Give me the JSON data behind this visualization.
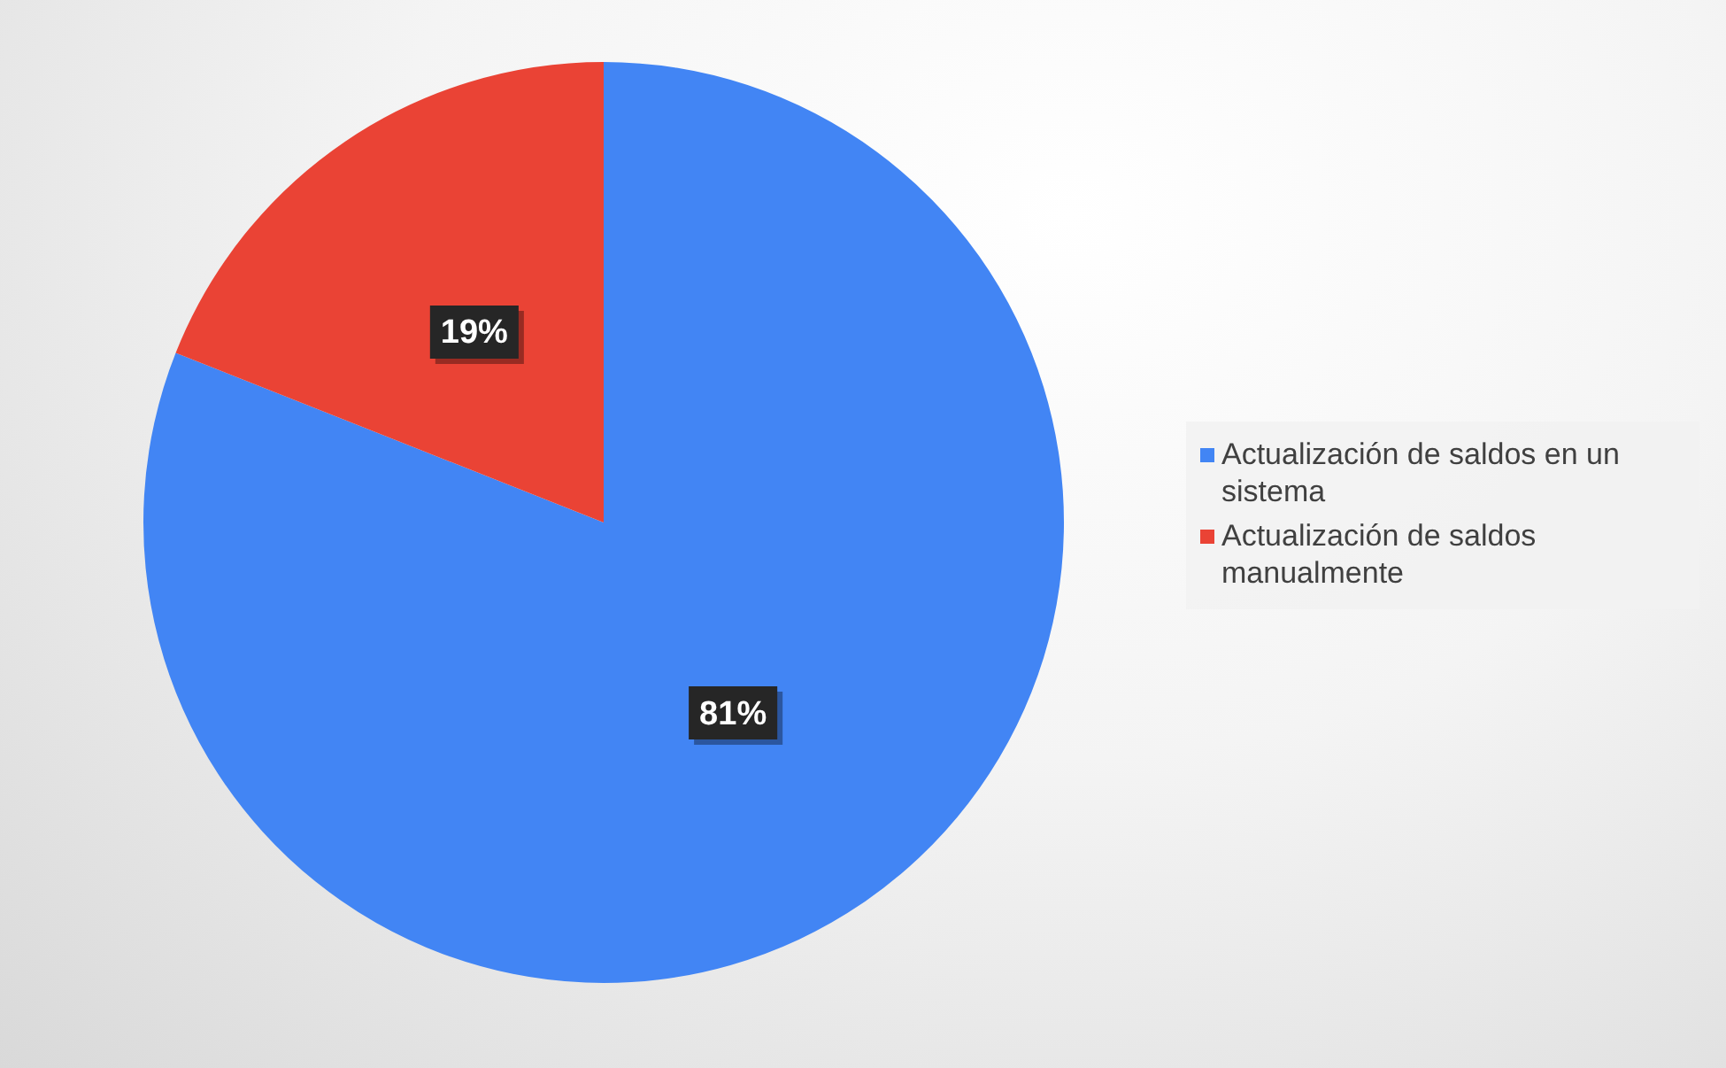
{
  "chart_data": {
    "type": "pie",
    "categories": [
      "Actualización de saldos en un sistema",
      "Actualización de saldos manualmente"
    ],
    "values": [
      81,
      19
    ],
    "colors": [
      "#4285f4",
      "#ea4335"
    ],
    "value_labels": [
      "81%",
      "19%"
    ],
    "legend": "right"
  }
}
